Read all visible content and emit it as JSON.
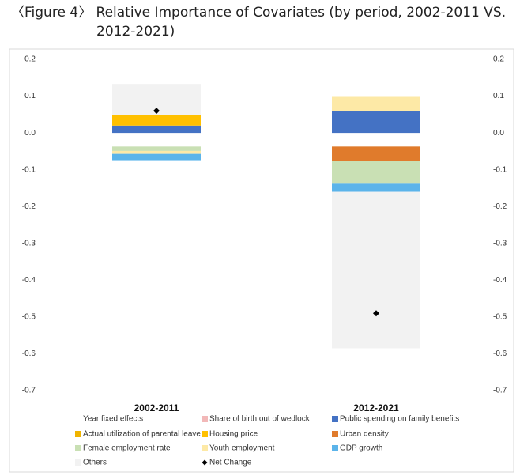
{
  "chart_data": {
    "type": "stacked-bar",
    "title_line1": "〈Figure 4〉 Relative Importance of Covariates (by period, 2002-2011 VS.",
    "title_line2": "2012-2021)",
    "categories": [
      "2002-2011",
      "2012-2021"
    ],
    "ylim": [
      -0.7,
      0.2
    ],
    "yticks": [
      0.2,
      0.1,
      {
        "value": 0,
        "label": "0.0"
      },
      -0.1,
      -0.2,
      -0.3,
      -0.4,
      -0.5,
      -0.6,
      -0.7
    ],
    "y2lim": [
      -0.7,
      0.2
    ],
    "y2ticks": [
      0.2,
      0.1,
      {
        "value": 0,
        "label": "0.0"
      },
      -0.1,
      -0.2,
      -0.3,
      -0.4,
      -0.5,
      -0.6,
      -0.7
    ],
    "series": [
      {
        "name": "Year fixed effects",
        "color": "#ffffff",
        "values": [
          -0.037,
          -0.037
        ]
      },
      {
        "name": "Share of birth out of wedlock",
        "color": "#f2b8b8",
        "values": [
          0,
          0
        ]
      },
      {
        "name": "Public spending on family benefits",
        "color": "#4472c4",
        "values": [
          0.02,
          0.06
        ]
      },
      {
        "name": "Actual utilization of parental leave",
        "color": "#f0b400",
        "values": [
          0,
          0
        ]
      },
      {
        "name": "Housing price",
        "color": "#ffc000",
        "values": [
          0.028,
          0
        ]
      },
      {
        "name": "Urban density",
        "color": "#e07b2c",
        "values": [
          0,
          -0.038
        ]
      },
      {
        "name": "Female employment rate",
        "color": "#c9e0b4",
        "values": [
          -0.012,
          -0.063
        ]
      },
      {
        "name": "Youth employment",
        "color": "#fde9a6",
        "values": [
          -0.008,
          0.038
        ]
      },
      {
        "name": "GDP growth",
        "color": "#5bb4ea",
        "values": [
          -0.017,
          -0.022
        ]
      },
      {
        "name": "Others",
        "color": "#f2f2f2",
        "values": [
          0.085,
          -0.425
        ]
      },
      {
        "name": "Net Change",
        "color": "#000000",
        "marker": "diamond",
        "values": [
          0.06,
          -0.49
        ]
      }
    ]
  }
}
